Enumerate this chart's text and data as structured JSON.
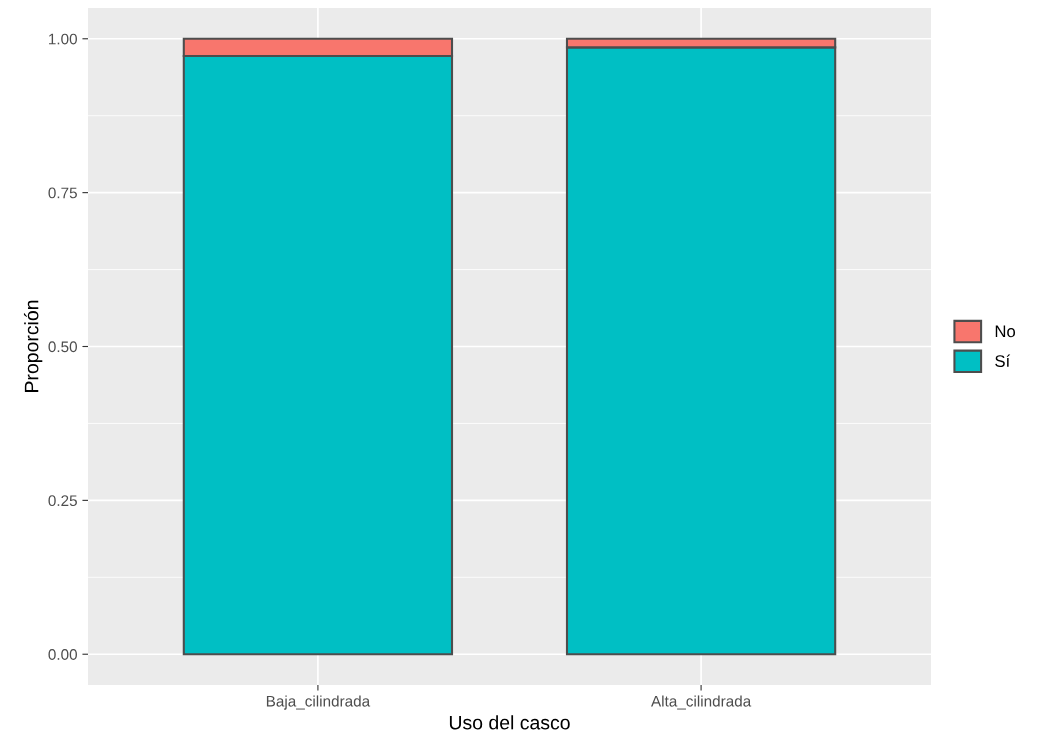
{
  "chart_data": {
    "type": "bar",
    "stacked": true,
    "xlabel": "Uso del casco",
    "ylabel": "Proporción",
    "categories": [
      "Baja_cilindrada",
      "Alta_cilindrada"
    ],
    "series": [
      {
        "name": "Sí",
        "color": "#00bfc4",
        "values": [
          0.972,
          0.986
        ]
      },
      {
        "name": "No",
        "color": "#f8766d",
        "values": [
          0.028,
          0.014
        ]
      }
    ],
    "ylim": [
      -0.05,
      1.05
    ],
    "yticks": [
      {
        "value": 0,
        "label": "0.00"
      },
      {
        "value": 0.25,
        "label": "0.25"
      },
      {
        "value": 0.5,
        "label": "0.50"
      },
      {
        "value": 0.75,
        "label": "0.75"
      },
      {
        "value": 1,
        "label": "1.00"
      }
    ],
    "grid": true,
    "legend": "right"
  }
}
